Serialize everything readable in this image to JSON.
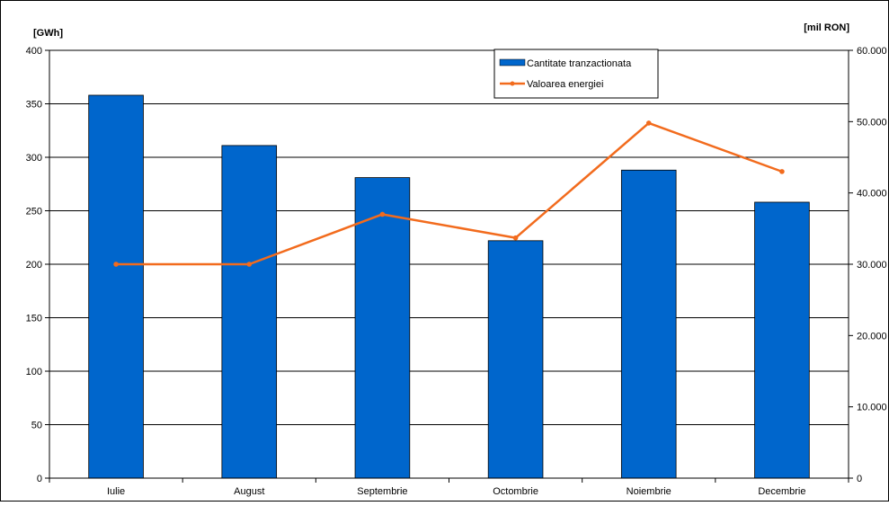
{
  "chart_data": {
    "type": "bar",
    "categories": [
      "Iulie",
      "August",
      "Septembrie",
      "Octombrie",
      "Noiembrie",
      "Decembrie"
    ],
    "series": [
      {
        "name": "Cantitate tranzactionata",
        "type": "bar",
        "axis": "left",
        "color": "#0066CC",
        "values": [
          358,
          311,
          281,
          222,
          288,
          258
        ]
      },
      {
        "name": "Valoarea energiei",
        "type": "line",
        "axis": "right",
        "color": "#F26B1D",
        "values": [
          30000,
          30000,
          37000,
          33700,
          49800,
          43000
        ]
      }
    ],
    "ylabel": "[GWh]",
    "y2label": "[mil RON]",
    "ylim": [
      0,
      400
    ],
    "y2lim": [
      0,
      60000
    ],
    "yticks": [
      "0",
      "50",
      "100",
      "150",
      "200",
      "250",
      "300",
      "350",
      "400"
    ],
    "y2ticks": [
      "0",
      "10.000",
      "20.000",
      "30.000",
      "40.000",
      "50.000",
      "60.000"
    ],
    "grid": true,
    "legend_position": "top-right"
  }
}
